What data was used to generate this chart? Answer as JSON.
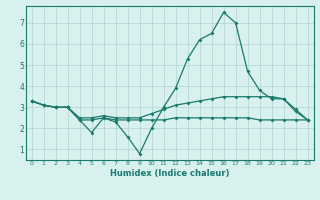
{
  "xlabel": "Humidex (Indice chaleur)",
  "x": [
    0,
    1,
    2,
    3,
    4,
    5,
    6,
    7,
    8,
    9,
    10,
    11,
    12,
    13,
    14,
    15,
    16,
    17,
    18,
    19,
    20,
    21,
    22,
    23
  ],
  "line1": [
    3.3,
    3.1,
    3.0,
    3.0,
    2.4,
    1.8,
    2.5,
    2.3,
    1.6,
    0.8,
    2.0,
    3.0,
    3.9,
    5.3,
    6.2,
    6.5,
    7.5,
    7.0,
    4.7,
    3.8,
    3.4,
    3.4,
    2.8,
    2.4
  ],
  "line2": [
    3.3,
    3.1,
    3.0,
    3.0,
    2.4,
    2.4,
    2.5,
    2.4,
    2.4,
    2.4,
    2.4,
    2.4,
    2.5,
    2.5,
    2.5,
    2.5,
    2.5,
    2.5,
    2.5,
    2.4,
    2.4,
    2.4,
    2.4,
    2.4
  ],
  "line3": [
    3.3,
    3.1,
    3.0,
    3.0,
    2.5,
    2.5,
    2.6,
    2.5,
    2.5,
    2.5,
    2.7,
    2.9,
    3.1,
    3.2,
    3.3,
    3.4,
    3.5,
    3.5,
    3.5,
    3.5,
    3.5,
    3.4,
    2.9,
    2.4
  ],
  "line_color": "#1a7a6e",
  "bg_color": "#d8f0ee",
  "grid_color": "#b8d8d4",
  "xlim": [
    -0.5,
    23.5
  ],
  "ylim": [
    0.5,
    7.8
  ],
  "yticks": [
    1,
    2,
    3,
    4,
    5,
    6,
    7
  ],
  "xticks": [
    0,
    1,
    2,
    3,
    4,
    5,
    6,
    7,
    8,
    9,
    10,
    11,
    12,
    13,
    14,
    15,
    16,
    17,
    18,
    19,
    20,
    21,
    22,
    23
  ]
}
